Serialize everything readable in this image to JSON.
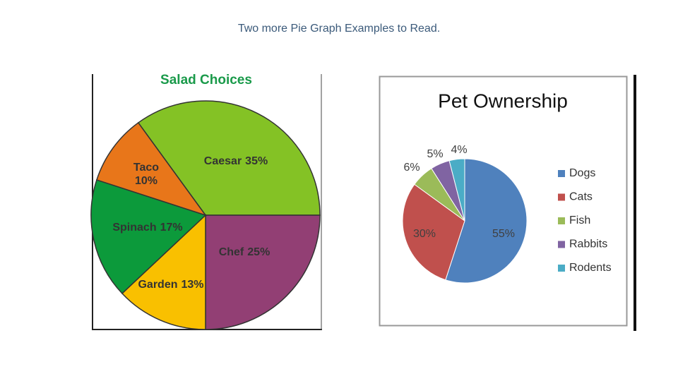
{
  "title": "Two more Pie Graph Examples to Read.",
  "chart_data": [
    {
      "type": "pie",
      "title": "Salad Choices",
      "categories": [
        "Caesar",
        "Chef",
        "Garden",
        "Spinach",
        "Taco"
      ],
      "values": [
        35,
        25,
        13,
        17,
        10
      ],
      "value_labels": [
        "35%",
        "25%",
        "13%",
        "17%",
        "10%"
      ],
      "colors": [
        "#84c225",
        "#923f74",
        "#f9c000",
        "#0c9a3b",
        "#e8761a"
      ],
      "legend": false
    },
    {
      "type": "pie",
      "title": "Pet Ownership",
      "categories": [
        "Dogs",
        "Cats",
        "Fish",
        "Rabbits",
        "Rodents"
      ],
      "values": [
        55,
        30,
        6,
        5,
        4
      ],
      "value_labels": [
        "55%",
        "30%",
        "6%",
        "5%",
        "4%"
      ],
      "colors": [
        "#4f81bd",
        "#c0504d",
        "#9bbb59",
        "#8064a2",
        "#4bacc6"
      ],
      "legend": "right"
    }
  ]
}
